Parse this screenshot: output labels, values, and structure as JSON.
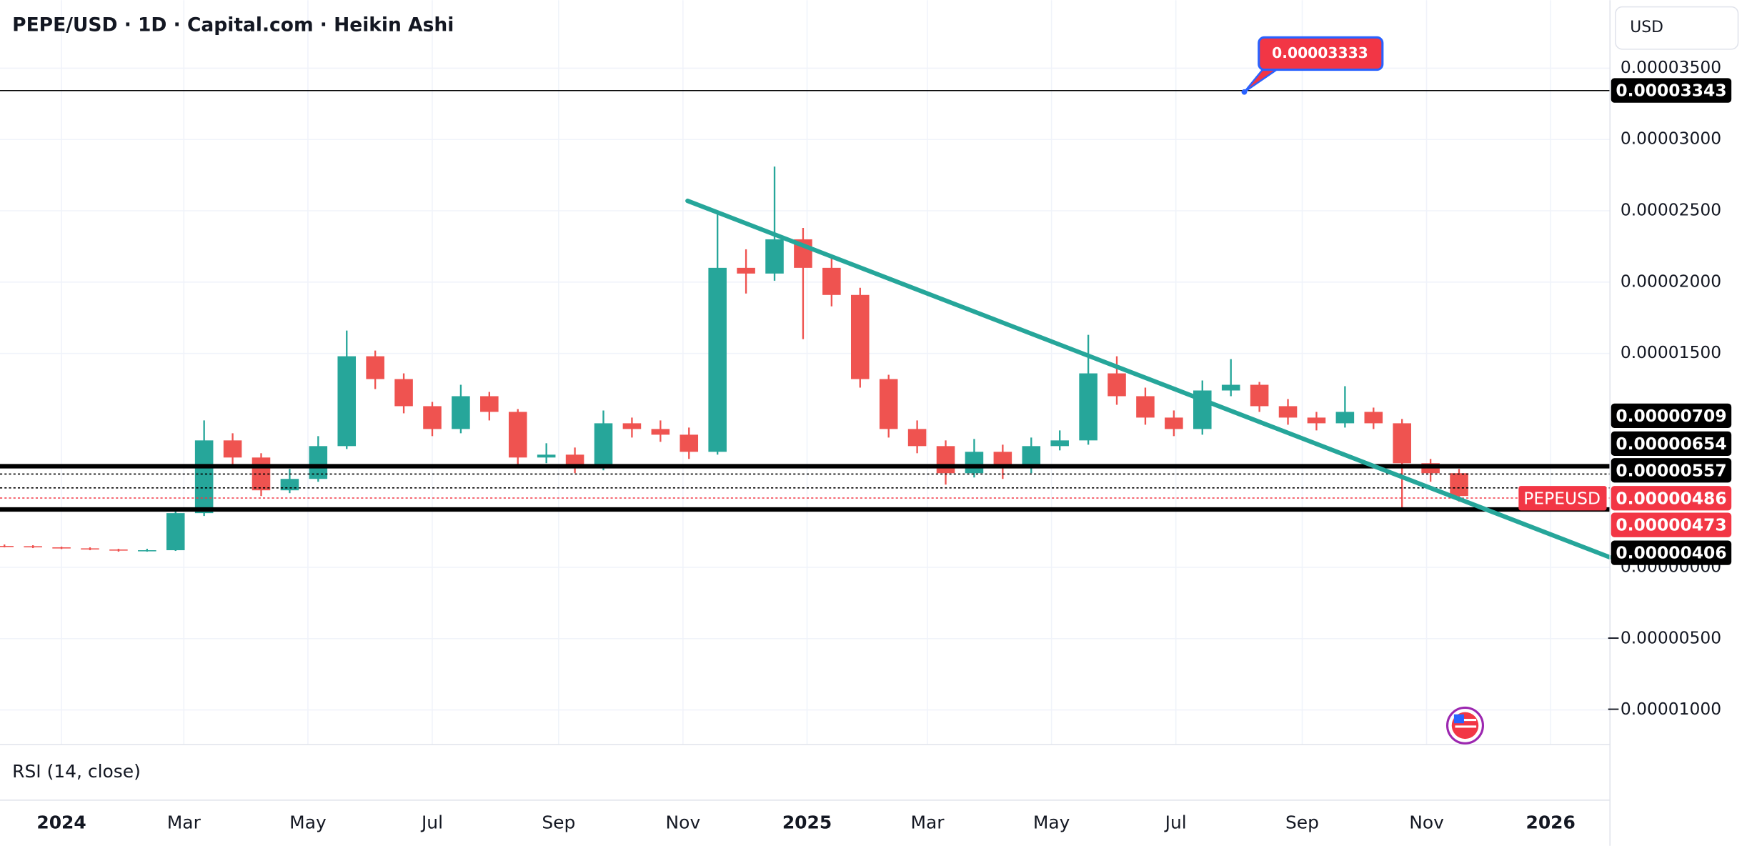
{
  "chart_data": {
    "type": "candlestick",
    "title": "PEPE/USD · 1D · Capital.com · Heikin Ashi",
    "currency": "USD",
    "pane_label": "RSI (14, close)",
    "symbol_badge": "PEPEUSD",
    "up_color": "#26a69a",
    "down_color": "#ef5350",
    "open": [
      1.5e-06,
      1.48e-06,
      1.4e-06,
      1.33e-06,
      1.25e-06,
      1.17e-06,
      1.2e-06,
      3.8e-06,
      8.9e-06,
      7.7e-06,
      5.4e-06,
      6.2e-06,
      8.5e-06,
      1.48e-05,
      1.32e-05,
      1.13e-05,
      9.7e-06,
      1.2e-05,
      1.09e-05,
      7.7e-06,
      7.9e-06,
      7e-06,
      1.01e-05,
      9.7e-06,
      9.3e-06,
      8.1e-06,
      2.1e-05,
      2.06e-05,
      2.3e-05,
      2.1e-05,
      1.91e-05,
      1.32e-05,
      9.7e-06,
      8.5e-06,
      6.6e-06,
      8.1e-06,
      7e-06,
      8.5e-06,
      8.9e-06,
      1.36e-05,
      1.2e-05,
      1.05e-05,
      9.7e-06,
      1.24e-05,
      1.28e-05,
      1.13e-05,
      1.05e-05,
      1.01e-05,
      1.09e-05,
      1.01e-05,
      7.3e-06,
      6.6e-06
    ],
    "high": [
      1.6e-06,
      1.55e-06,
      1.45e-06,
      1.4e-06,
      1.3e-06,
      1.3e-06,
      4.2e-06,
      1.03e-05,
      9.4e-06,
      8e-06,
      6.9e-06,
      9.2e-06,
      1.66e-05,
      1.52e-05,
      1.36e-05,
      1.16e-05,
      1.28e-05,
      1.23e-05,
      1.11e-05,
      8.7e-06,
      8.4e-06,
      1.1e-05,
      1.05e-05,
      1.03e-05,
      9.8e-06,
      2.5e-05,
      2.23e-05,
      2.81e-05,
      2.38e-05,
      2.17e-05,
      1.96e-05,
      1.35e-05,
      1.03e-05,
      8.9e-06,
      9e-06,
      8.6e-06,
      9.1e-06,
      9.6e-06,
      1.63e-05,
      1.48e-05,
      1.26e-05,
      1.1e-05,
      1.31e-05,
      1.46e-05,
      1.3e-05,
      1.18e-05,
      1.09e-05,
      1.27e-05,
      1.12e-05,
      1.04e-05,
      7.6e-06,
      6.9e-06
    ],
    "low": [
      1.4e-06,
      1.35e-06,
      1.28e-06,
      1.2e-06,
      1.1e-06,
      1.1e-06,
      1.15e-06,
      3.6e-06,
      7.2e-06,
      5e-06,
      5.2e-06,
      6e-06,
      8.3e-06,
      1.25e-05,
      1.08e-05,
      9.2e-06,
      9.4e-06,
      1.03e-05,
      7.2e-06,
      7.3e-06,
      6.6e-06,
      6.8e-06,
      9.1e-06,
      8.8e-06,
      7.6e-06,
      7.9e-06,
      1.92e-05,
      2.01e-05,
      1.6e-05,
      1.83e-05,
      1.26e-05,
      9.1e-06,
      8e-06,
      5.8e-06,
      6.3e-06,
      6.2e-06,
      6.6e-06,
      8.2e-06,
      8.6e-06,
      1.14e-05,
      1e-05,
      9.2e-06,
      9.3e-06,
      1.2e-05,
      1.09e-05,
      1e-05,
      9.6e-06,
      9.8e-06,
      9.7e-06,
      4.1e-06,
      6e-06,
      4.6e-06
    ],
    "close": [
      1.48e-06,
      1.4e-06,
      1.33e-06,
      1.25e-06,
      1.17e-06,
      1.2e-06,
      3.8e-06,
      8.9e-06,
      7.7e-06,
      5.4e-06,
      6.2e-06,
      8.5e-06,
      1.48e-05,
      1.32e-05,
      1.13e-05,
      9.7e-06,
      1.2e-05,
      1.09e-05,
      7.7e-06,
      7.9e-06,
      7e-06,
      1.01e-05,
      9.7e-06,
      9.3e-06,
      8.1e-06,
      2.1e-05,
      2.06e-05,
      2.3e-05,
      2.1e-05,
      1.91e-05,
      1.32e-05,
      9.7e-06,
      8.5e-06,
      6.6e-06,
      8.1e-06,
      7e-06,
      8.5e-06,
      8.9e-06,
      1.36e-05,
      1.2e-05,
      1.05e-05,
      9.7e-06,
      1.24e-05,
      1.28e-05,
      1.13e-05,
      1.05e-05,
      1.01e-05,
      1.09e-05,
      1.01e-05,
      7.3e-06,
      6.6e-06,
      5e-06
    ],
    "xlim": [
      -0.156,
      56.29
    ],
    "xticks": [
      {
        "value": 2.0,
        "label": "2024"
      },
      {
        "value": 6.29,
        "label": "Mar"
      },
      {
        "value": 10.64,
        "label": "May"
      },
      {
        "value": 15.0,
        "label": "Jul"
      },
      {
        "value": 19.43,
        "label": "Sep"
      },
      {
        "value": 23.79,
        "label": "Nov"
      },
      {
        "value": 28.14,
        "label": "2025"
      },
      {
        "value": 32.36,
        "label": "Mar"
      },
      {
        "value": 36.71,
        "label": "May"
      },
      {
        "value": 41.07,
        "label": "Jul"
      },
      {
        "value": 45.5,
        "label": "Sep"
      },
      {
        "value": 49.86,
        "label": "Nov"
      },
      {
        "value": 54.21,
        "label": "2026"
      }
    ],
    "ylim": [
      -1.242e-05,
      3.977e-05
    ],
    "yticks": [
      {
        "value": 3.5e-05,
        "label": "0.00003500"
      },
      {
        "value": 3e-05,
        "label": "0.00003000"
      },
      {
        "value": 2.5e-05,
        "label": "0.00002500"
      },
      {
        "value": 2e-05,
        "label": "0.00002000"
      },
      {
        "value": 1.5e-05,
        "label": "0.00001500"
      },
      {
        "value": 0,
        "label": "0.00000000"
      },
      {
        "value": -5e-06,
        "label": "−0.00000500"
      },
      {
        "value": -1e-05,
        "label": "−0.00001000"
      }
    ],
    "grid": true,
    "price_lines": [
      {
        "value": 3.343e-05,
        "label": "0.00003343",
        "color": "#000000",
        "line": "solid"
      },
      {
        "value": 7.09e-06,
        "label": "0.00000709",
        "color": "#000000",
        "line": "thick"
      },
      {
        "value": 6.54e-06,
        "label": "0.00000654",
        "color": "#000000",
        "line": "dotted"
      },
      {
        "value": 5.57e-06,
        "label": "0.00000557",
        "color": "#000000",
        "line": "dotted"
      },
      {
        "value": 4.86e-06,
        "label": "0.00000486",
        "color": "#f23645",
        "line": "dotted"
      },
      {
        "value": 4.73e-06,
        "label": "0.00000473",
        "color": "#f23645",
        "line": "none"
      },
      {
        "value": 4.06e-06,
        "label": "0.00000406",
        "color": "#000000",
        "line": "thick"
      }
    ],
    "callout": {
      "value": 3.333e-05,
      "label": "0.00003333",
      "x": 43.47
    },
    "trendline": {
      "x": [
        23.95,
        56.29
      ],
      "y": [
        2.57e-05,
        7e-07
      ],
      "color": "#26a69a"
    }
  }
}
